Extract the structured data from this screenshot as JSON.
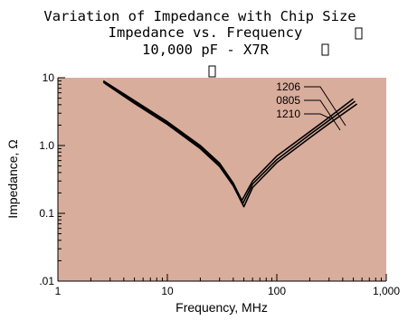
{
  "chart_data": {
    "type": "line",
    "title": "Variation of Impedance with Chip Size",
    "subtitle_1": "Impedance vs. Frequency",
    "subtitle_2": "10,000 pF - X7R",
    "xlabel": "Frequency, MHz",
    "ylabel": "Impedance, Ω",
    "x_scale": "log",
    "y_scale": "log",
    "xlim": [
      1,
      1000
    ],
    "ylim": [
      0.01,
      10
    ],
    "x_ticks": [
      {
        "value": 1,
        "label": "1"
      },
      {
        "value": 10,
        "label": "10"
      },
      {
        "value": 100,
        "label": "100"
      },
      {
        "value": 1000,
        "label": "1,000"
      }
    ],
    "y_ticks": [
      {
        "value": 0.01,
        "label": ".01"
      },
      {
        "value": 0.1,
        "label": "0.1"
      },
      {
        "value": 1,
        "label": "1.0"
      },
      {
        "value": 10,
        "label": "10"
      }
    ],
    "plot_background": "#d9ad9c",
    "line_color": "#000000",
    "legend_placement": "inline labels top-right",
    "series": [
      {
        "name": "1206",
        "points": [
          [
            2.6,
            9.0
          ],
          [
            5,
            4.6
          ],
          [
            10,
            2.25
          ],
          [
            20,
            1.0
          ],
          [
            30,
            0.55
          ],
          [
            40,
            0.28
          ],
          [
            48,
            0.155
          ],
          [
            60,
            0.3
          ],
          [
            100,
            0.7
          ],
          [
            200,
            1.6
          ],
          [
            300,
            2.6
          ],
          [
            500,
            4.9
          ]
        ]
      },
      {
        "name": "0805",
        "points": [
          [
            2.6,
            8.6
          ],
          [
            5,
            4.4
          ],
          [
            10,
            2.15
          ],
          [
            20,
            0.95
          ],
          [
            30,
            0.52
          ],
          [
            40,
            0.27
          ],
          [
            49,
            0.14
          ],
          [
            60,
            0.27
          ],
          [
            100,
            0.62
          ],
          [
            200,
            1.45
          ],
          [
            300,
            2.35
          ],
          [
            520,
            4.5
          ]
        ]
      },
      {
        "name": "1210",
        "points": [
          [
            2.7,
            8.2
          ],
          [
            5,
            4.2
          ],
          [
            10,
            2.05
          ],
          [
            20,
            0.9
          ],
          [
            30,
            0.49
          ],
          [
            40,
            0.255
          ],
          [
            50,
            0.125
          ],
          [
            60,
            0.24
          ],
          [
            100,
            0.56
          ],
          [
            200,
            1.3
          ],
          [
            300,
            2.1
          ],
          [
            540,
            4.1
          ]
        ]
      }
    ]
  }
}
